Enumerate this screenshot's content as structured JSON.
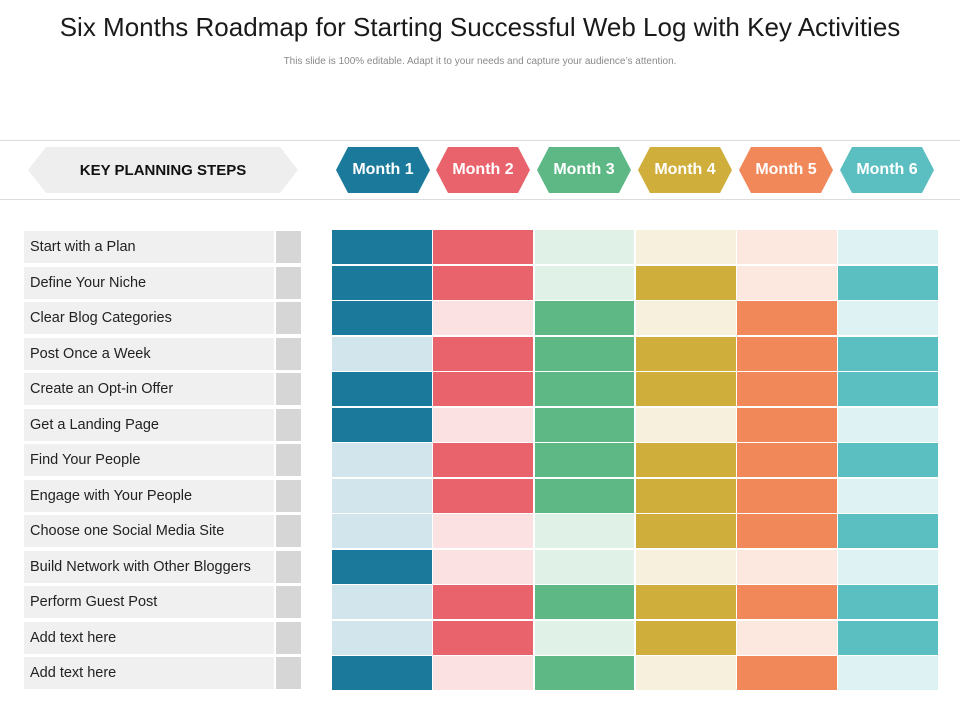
{
  "title": "Six Months Roadmap for Starting Successful Web Log with Key Activities",
  "subtitle": "This slide is 100% editable. Adapt it to your needs and capture your audience’s attention.",
  "header": {
    "key_steps_label": "KEY PLANNING STEPS",
    "months": [
      {
        "label": "Month 1",
        "color": "#1b7a9c",
        "light": "#d2e4ec"
      },
      {
        "label": "Month 2",
        "color": "#e9636c",
        "light": "#fce1e2"
      },
      {
        "label": "Month 3",
        "color": "#5db886",
        "light": "#e0f2e8"
      },
      {
        "label": "Month 4",
        "color": "#cfae3c",
        "light": "#f6f0dc"
      },
      {
        "label": "Month 5",
        "color": "#f0885a",
        "light": "#fde8df"
      },
      {
        "label": "Month 6",
        "color": "#5bbfc2",
        "light": "#def2f3"
      }
    ]
  },
  "steps": [
    {
      "label": "Start with a Plan",
      "active": [
        1,
        1,
        0,
        0,
        0,
        0
      ]
    },
    {
      "label": "Define Your Niche",
      "active": [
        1,
        1,
        0,
        1,
        0,
        1
      ]
    },
    {
      "label": "Clear Blog Categories",
      "active": [
        1,
        0,
        1,
        0,
        1,
        0
      ]
    },
    {
      "label": "Post Once a Week",
      "active": [
        0,
        1,
        1,
        1,
        1,
        1
      ]
    },
    {
      "label": "Create an Opt-in Offer",
      "active": [
        1,
        1,
        1,
        1,
        1,
        1
      ]
    },
    {
      "label": "Get a Landing Page",
      "active": [
        1,
        0,
        1,
        0,
        1,
        0
      ]
    },
    {
      "label": "Find Your People",
      "active": [
        0,
        1,
        1,
        1,
        1,
        1
      ]
    },
    {
      "label": "Engage with Your People",
      "active": [
        0,
        1,
        1,
        1,
        1,
        0
      ]
    },
    {
      "label": "Choose one Social Media Site",
      "active": [
        0,
        0,
        0,
        1,
        1,
        1
      ]
    },
    {
      "label": "Build Network with Other Bloggers",
      "active": [
        1,
        0,
        0,
        0,
        0,
        0
      ]
    },
    {
      "label": "Perform Guest Post",
      "active": [
        0,
        1,
        1,
        1,
        1,
        1
      ]
    },
    {
      "label": "Add text here",
      "active": [
        0,
        1,
        0,
        1,
        0,
        1
      ]
    },
    {
      "label": "Add text here",
      "active": [
        1,
        0,
        1,
        0,
        1,
        0
      ]
    }
  ]
}
